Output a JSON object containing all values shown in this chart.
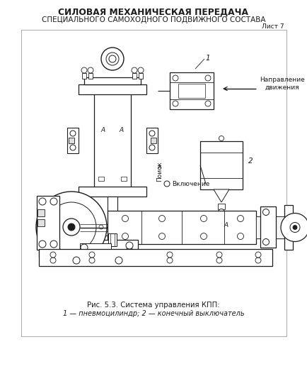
{
  "title_line1": "СИЛОВАЯ МЕХАНИЧЕСКАЯ ПЕРЕДАЧА",
  "title_line2": "СПЕЦИАЛЬНОГО САМОХОДНОГО ПОДВИЖНОГО СОСТАВА",
  "sheet_label": "Лист 7",
  "caption_line1": "Рис. 5.3. Система управления КПП:",
  "caption_line2": "1 — пневмоцилиндр; 2 — конечный выключатель",
  "bg_color": "#ffffff",
  "border_color": "#aaaaaa",
  "dc": "#1c1c1c",
  "fig_w": 4.35,
  "fig_h": 5.37,
  "dpi": 100
}
